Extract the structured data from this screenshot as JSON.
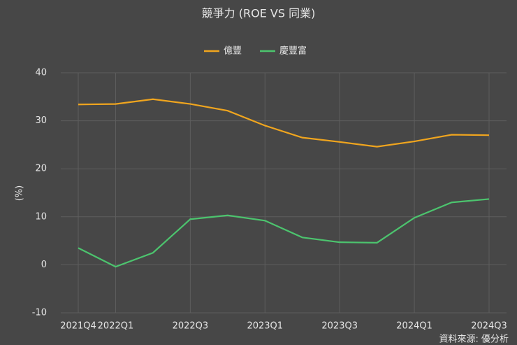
{
  "chart_data": {
    "type": "line",
    "title": "競爭力 (ROE VS 同業)",
    "y_label": "(%)",
    "source": "資料來源: 優分析",
    "categories": [
      "2021Q4",
      "2022Q1",
      null,
      "2022Q3",
      null,
      "2023Q1",
      null,
      "2023Q3",
      null,
      "2024Q1",
      null,
      "2024Q3"
    ],
    "series": [
      {
        "name": "億豐",
        "color": "#f0a51e",
        "values": [
          33.4,
          33.5,
          34.5,
          33.5,
          32.1,
          29.0,
          26.5,
          25.6,
          24.6,
          25.7,
          27.1,
          27.0
        ]
      },
      {
        "name": "慶豐富",
        "color": "#4cc46e",
        "values": [
          3.5,
          -0.4,
          2.5,
          9.5,
          10.3,
          9.2,
          5.7,
          4.7,
          4.6,
          9.8,
          13.0,
          13.7
        ]
      }
    ],
    "ylim": [
      -10,
      40
    ],
    "yticks": [
      -10,
      0,
      10,
      20,
      30,
      40
    ],
    "grid": true
  }
}
